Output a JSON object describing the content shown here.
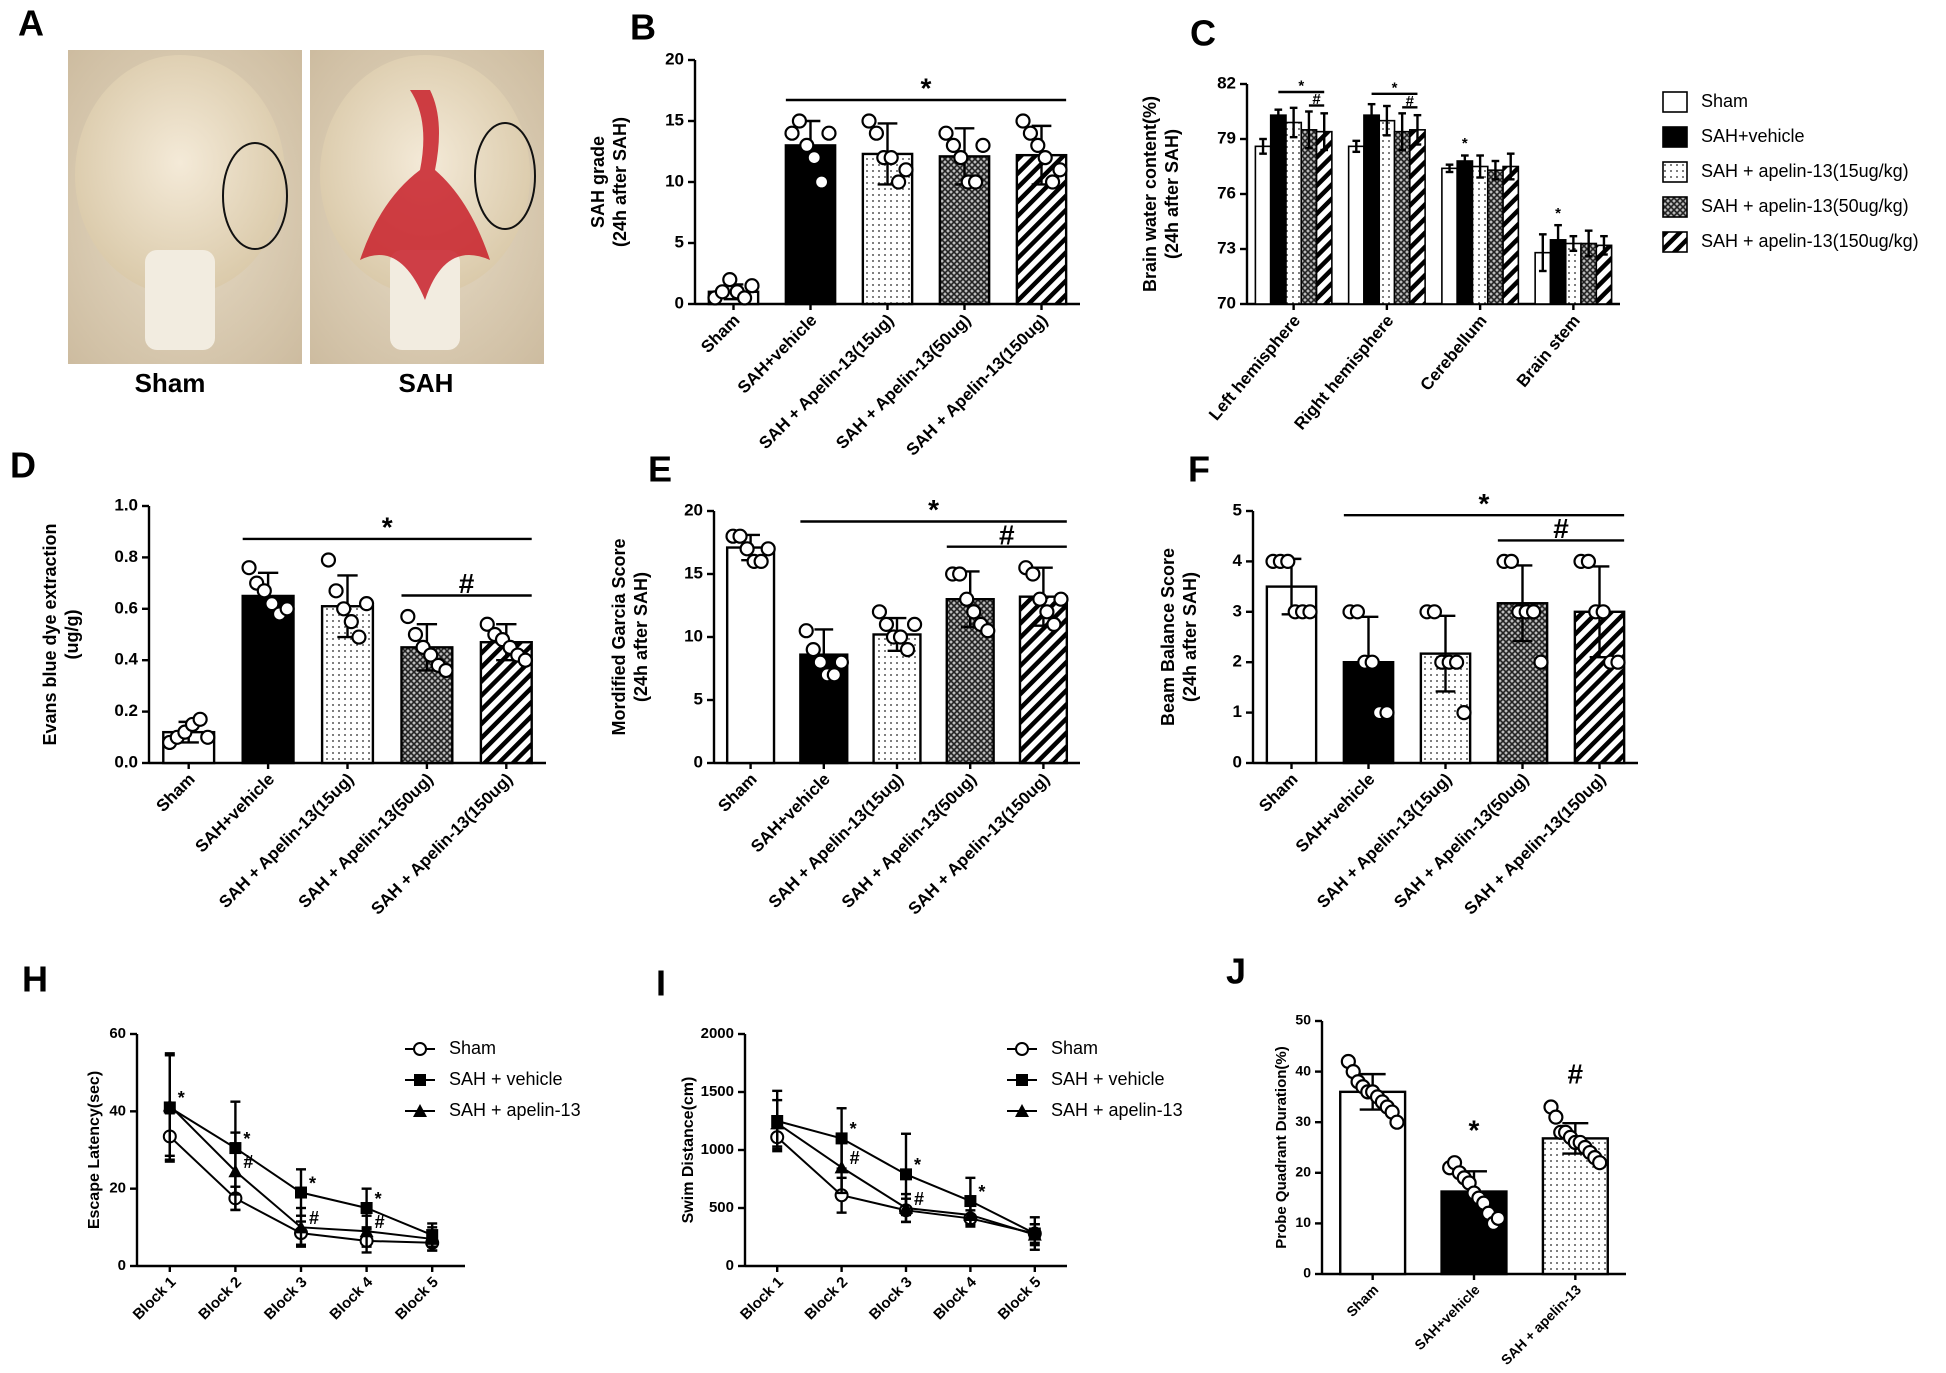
{
  "photo_panel": {
    "panel": "A",
    "captions": [
      "Sham",
      "SAH"
    ]
  },
  "chart_data": [
    {
      "type": "bar",
      "panel": "B",
      "ylabel": [
        "SAH grade",
        "(24h after SAH)"
      ],
      "ylim": [
        0,
        20
      ],
      "yticks": [
        0,
        5,
        10,
        15,
        20
      ],
      "categories": [
        "Sham",
        "SAH+vehicle",
        "SAH + Apelin-13(15ug)",
        "SAH + Apelin-13(50ug)",
        "SAH + Apelin-13(150ug)"
      ],
      "values": [
        1.0,
        13.0,
        12.3,
        12.1,
        12.2
      ],
      "errors": [
        0.6,
        2.0,
        2.5,
        2.3,
        2.4
      ],
      "patterns": [
        "white",
        "black",
        "dotted",
        "checkered",
        "striped"
      ],
      "points": [
        [
          0.5,
          1,
          2,
          1,
          0.5,
          1.5
        ],
        [
          14,
          15,
          13,
          12,
          10,
          14
        ],
        [
          15,
          14,
          12,
          12,
          10,
          11
        ],
        [
          14,
          13,
          12,
          10,
          10,
          13
        ],
        [
          15,
          14,
          13,
          12,
          10,
          11
        ]
      ],
      "annotations": [
        {
          "text": "*",
          "span": [
            1,
            4
          ]
        }
      ]
    },
    {
      "type": "grouped_bar",
      "panel": "C",
      "ylabel": [
        "Brain water content(%)",
        "(24h after SAH)"
      ],
      "ylim": [
        70,
        82
      ],
      "yticks": [
        70,
        73,
        76,
        79,
        82
      ],
      "categories": [
        "Left hemisphere",
        "Right hemisphere",
        "Cerebellum",
        "Brain stem"
      ],
      "legend": "right",
      "series": [
        {
          "name": "Sham",
          "pattern": "white",
          "values": [
            78.6,
            78.6,
            77.4,
            72.8
          ],
          "errors": [
            0.4,
            0.3,
            0.2,
            1.0
          ]
        },
        {
          "name": "SAH+vehicle",
          "pattern": "black",
          "values": [
            80.3,
            80.3,
            77.8,
            73.5
          ],
          "errors": [
            0.3,
            0.6,
            0.3,
            0.8
          ]
        },
        {
          "name": "SAH + apelin-13(15ug/kg)",
          "pattern": "dotted",
          "values": [
            79.9,
            80.0,
            77.5,
            73.3
          ],
          "errors": [
            0.8,
            0.8,
            0.6,
            0.4
          ]
        },
        {
          "name": "SAH + apelin-13(50ug/kg)",
          "pattern": "checkered",
          "values": [
            79.5,
            79.4,
            77.3,
            73.3
          ],
          "errors": [
            1.0,
            1.0,
            0.5,
            0.7
          ]
        },
        {
          "name": "SAH + apelin-13(150ug/kg)",
          "pattern": "striped",
          "values": [
            79.4,
            79.5,
            77.5,
            73.2
          ],
          "errors": [
            1.0,
            0.8,
            0.7,
            0.5
          ]
        }
      ],
      "annotations": [
        {
          "text": "*",
          "category": 0,
          "span": [
            1,
            4
          ]
        },
        {
          "text": "#",
          "category": 0,
          "span": [
            3,
            4
          ]
        },
        {
          "text": "*",
          "category": 1,
          "span": [
            1,
            4
          ]
        },
        {
          "text": "#",
          "category": 1,
          "span": [
            3,
            4
          ]
        },
        {
          "text": "*",
          "category": 2,
          "span": [
            1,
            1
          ]
        },
        {
          "text": "*",
          "category": 3,
          "span": [
            1,
            1
          ]
        }
      ]
    },
    {
      "type": "bar",
      "panel": "D",
      "ylabel": [
        "Evans blue dye extraction",
        "(ug/g)"
      ],
      "ylim": [
        0,
        1.0
      ],
      "yticks": [
        {
          "value": 0,
          "label": "0.0"
        },
        0.2,
        0.4,
        0.6,
        0.8,
        {
          "value": 1,
          "label": "1.0"
        }
      ],
      "categories": [
        "Sham",
        "SAH+vehicle",
        "SAH + Apelin-13(15ug)",
        "SAH + Apelin-13(50ug)",
        "SAH + Apelin-13(150ug)"
      ],
      "values": [
        0.12,
        0.65,
        0.61,
        0.45,
        0.47
      ],
      "errors": [
        0.04,
        0.09,
        0.12,
        0.09,
        0.07
      ],
      "patterns": [
        "white",
        "black",
        "dotted",
        "checkered",
        "striped"
      ],
      "points": [
        [
          0.08,
          0.1,
          0.12,
          0.15,
          0.17,
          0.1
        ],
        [
          0.76,
          0.7,
          0.67,
          0.62,
          0.58,
          0.6
        ],
        [
          0.79,
          0.67,
          0.6,
          0.55,
          0.49,
          0.62
        ],
        [
          0.57,
          0.5,
          0.45,
          0.42,
          0.38,
          0.36
        ],
        [
          0.54,
          0.5,
          0.48,
          0.45,
          0.42,
          0.4
        ]
      ],
      "annotations": [
        {
          "text": "*",
          "span": [
            1,
            4
          ]
        },
        {
          "text": "#",
          "span": [
            3,
            4
          ]
        }
      ]
    },
    {
      "type": "bar",
      "panel": "E",
      "ylabel": [
        "Mordified Garcia Score",
        "(24h after SAH)"
      ],
      "ylim": [
        0,
        20
      ],
      "yticks": [
        0,
        5,
        10,
        15,
        20
      ],
      "categories": [
        "Sham",
        "SAH+vehicle",
        "SAH + Apelin-13(15ug)",
        "SAH + Apelin-13(50ug)",
        "SAH + Apelin-13(150ug)"
      ],
      "values": [
        17.1,
        8.6,
        10.2,
        13.0,
        13.2
      ],
      "errors": [
        1.0,
        2.0,
        1.3,
        2.2,
        2.3
      ],
      "patterns": [
        "white",
        "black",
        "dotted",
        "checkered",
        "striped"
      ],
      "points": [
        [
          18,
          18,
          17,
          16,
          16,
          17
        ],
        [
          10.5,
          9,
          8,
          7,
          7,
          8
        ],
        [
          12,
          11,
          10,
          10,
          9,
          11
        ],
        [
          15,
          15,
          13,
          12,
          11,
          10.5
        ],
        [
          15.5,
          15,
          13,
          12,
          11,
          13
        ]
      ],
      "annotations": [
        {
          "text": "*",
          "span": [
            1,
            4
          ]
        },
        {
          "text": "#",
          "span": [
            3,
            4
          ]
        }
      ]
    },
    {
      "type": "bar",
      "panel": "F",
      "ylabel": [
        "Beam Balance Score",
        "(24h after SAH)"
      ],
      "ylim": [
        0,
        5
      ],
      "yticks": [
        0,
        1,
        2,
        3,
        4,
        5
      ],
      "categories": [
        "Sham",
        "SAH+vehicle",
        "SAH + Apelin-13(15ug)",
        "SAH + Apelin-13(50ug)",
        "SAH + Apelin-13(150ug)"
      ],
      "values": [
        3.5,
        2.0,
        2.17,
        3.17,
        3.0
      ],
      "errors": [
        0.55,
        0.9,
        0.75,
        0.75,
        0.9
      ],
      "patterns": [
        "white",
        "black",
        "dotted",
        "checkered",
        "striped"
      ],
      "points": [
        [
          4,
          4,
          4,
          3,
          3,
          3
        ],
        [
          3,
          3,
          2,
          2,
          1,
          1
        ],
        [
          3,
          3,
          2,
          2,
          2,
          1
        ],
        [
          4,
          4,
          3,
          3,
          3,
          2
        ],
        [
          4,
          4,
          3,
          3,
          2,
          2
        ]
      ],
      "annotations": [
        {
          "text": "*",
          "span": [
            1,
            4
          ]
        },
        {
          "text": "#",
          "span": [
            3,
            4
          ]
        }
      ]
    },
    {
      "type": "line",
      "panel": "H",
      "ylabel": [
        "Escape Latency(sec)"
      ],
      "ylim": [
        0,
        60
      ],
      "yticks": [
        0,
        20,
        40,
        60
      ],
      "legend": "upper right",
      "categories": [
        "Block 1",
        "Block 2",
        "Block 3",
        "Block 4",
        "Block 5"
      ],
      "series": [
        {
          "name": "Sham",
          "marker": "circle",
          "values": [
            33.5,
            17.5,
            8.5,
            6.5,
            6
          ],
          "errors": [
            6,
            3,
            3,
            3,
            2
          ],
          "point_labels": [
            null,
            null,
            null,
            null,
            null
          ]
        },
        {
          "name": "SAH + vehicle",
          "marker": "square",
          "values": [
            41,
            30.5,
            19,
            15,
            8
          ],
          "errors": [
            14,
            12,
            6,
            5,
            3
          ],
          "point_labels": [
            "*",
            "*",
            "*",
            "*",
            null
          ]
        },
        {
          "name": "SAH + apelin-13",
          "marker": "triangle",
          "values": [
            41.5,
            24.5,
            10,
            9,
            7
          ],
          "errors": [
            13,
            10,
            5,
            4,
            3
          ],
          "point_labels": [
            null,
            "#",
            "#",
            "#",
            null
          ]
        }
      ]
    },
    {
      "type": "line",
      "panel": "I",
      "ylabel": [
        "Swim Distance(cm)"
      ],
      "ylim": [
        0,
        2000
      ],
      "yticks": [
        0,
        500,
        1000,
        1500,
        2000
      ],
      "legend": "upper right",
      "categories": [
        "Block 1",
        "Block 2",
        "Block 3",
        "Block 4",
        "Block 5"
      ],
      "series": [
        {
          "name": "Sham",
          "marker": "circle",
          "values": [
            1110,
            610,
            480,
            410,
            280
          ],
          "errors": [
            100,
            150,
            100,
            70,
            80
          ],
          "point_labels": [
            null,
            null,
            null,
            null,
            null
          ]
        },
        {
          "name": "SAH + vehicle",
          "marker": "square",
          "values": [
            1250,
            1100,
            790,
            560,
            280
          ],
          "errors": [
            260,
            260,
            350,
            200,
            140
          ],
          "point_labels": [
            null,
            "*",
            "*",
            "*",
            null
          ]
        },
        {
          "name": "SAH + apelin-13",
          "marker": "triangle",
          "values": [
            1230,
            850,
            500,
            440,
            270
          ],
          "errors": [
            200,
            220,
            120,
            80,
            90
          ],
          "point_labels": [
            null,
            "#",
            "#",
            null,
            null
          ]
        }
      ]
    },
    {
      "type": "bar",
      "panel": "J",
      "ylabel": [
        "Probe Quadrant Duration(%)"
      ],
      "ylim": [
        0,
        50
      ],
      "yticks": [
        0,
        10,
        20,
        30,
        40,
        50
      ],
      "categories": [
        "Sham",
        "SAH+vehicle",
        "SAH + apelin-13"
      ],
      "values": [
        36,
        16.3,
        26.8
      ],
      "errors": [
        3.5,
        4,
        3
      ],
      "patterns": [
        "white",
        "black",
        "dotted"
      ],
      "points": [
        [
          42,
          40,
          38,
          37,
          36,
          36,
          35,
          34,
          33,
          32,
          30
        ],
        [
          21,
          22,
          20,
          19,
          18,
          16,
          15,
          14,
          12,
          10,
          11
        ],
        [
          33,
          31,
          28,
          28,
          27,
          26,
          26,
          25,
          24,
          23,
          22
        ]
      ],
      "annotations": [
        {
          "text": "*",
          "span": [
            1,
            1
          ]
        },
        {
          "text": "#",
          "span": [
            2,
            2
          ]
        }
      ]
    }
  ]
}
